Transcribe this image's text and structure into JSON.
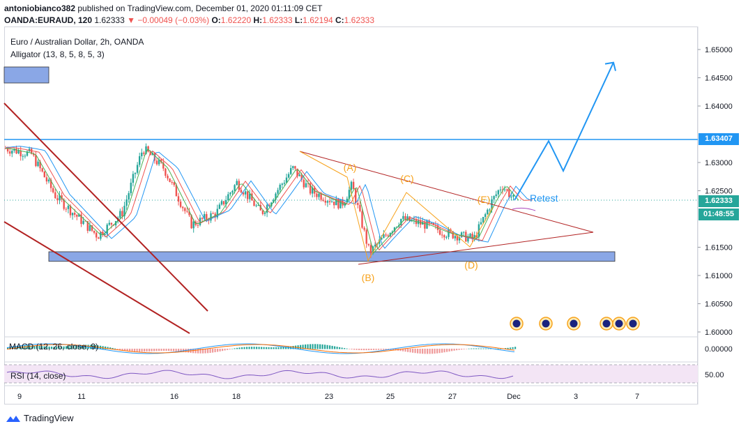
{
  "header": {
    "author": "antoniobianco382",
    "published_text": "published on TradingView.com, December 01, 2020 01:11:09 CET",
    "symbol": "OANDA:EURAUD, 120",
    "last": "1.62333",
    "change": "−0.00049 (−0.03%)",
    "o_label": "O:",
    "o_val": "1.62220",
    "h_label": "H:",
    "h_val": "1.62333",
    "l_label": "L:",
    "l_val": "1.62194",
    "c_label": "C:",
    "c_val": "1.62333"
  },
  "legend": {
    "instrument": "Euro / Australian Dollar, 2h, OANDA",
    "indicator": "Alligator (13, 8, 5, 8, 5, 3)"
  },
  "panes": {
    "macd_label": "MACD (12, 26, close, 9)",
    "rsi_label": "RSI (14, close)",
    "rsi_level": "50.00",
    "macd_level": "0.00000"
  },
  "badges": {
    "level": "1.63407",
    "price": "1.62333",
    "timer": "01:48:55"
  },
  "annotations": {
    "A": "(A)",
    "B": "(B)",
    "C": "(C)",
    "D": "(D)",
    "E": "(E)",
    "retest": "Retest"
  },
  "footer": {
    "brand": "TradingView"
  },
  "colors": {
    "up": "#26a69a",
    "down": "#ef5350",
    "blue": "#2196f3",
    "orange": "#f7a21b",
    "zone": "#8aa7e6",
    "trend": "#b22222"
  },
  "chart_data": {
    "type": "candlestick",
    "symbol": "EURAUD",
    "timeframe": "2h",
    "y_ticks": [
      1.65,
      1.645,
      1.64,
      1.635,
      1.63,
      1.625,
      1.62,
      1.615,
      1.61,
      1.605,
      1.6
    ],
    "y_tick_labels": [
      "1.65000",
      "1.64500",
      "1.64000",
      "",
      "1.63000",
      "1.62500",
      "",
      "1.61500",
      "1.61000",
      "1.60500",
      "1.60000"
    ],
    "x_tick_labels": [
      "9",
      "11",
      "16",
      "18",
      "23",
      "25",
      "27",
      "Dec",
      "3",
      "7"
    ],
    "ylim": [
      1.6,
      1.65
    ],
    "resistance_level": 1.63407,
    "last_price": 1.62333,
    "support_zone": [
      1.6125,
      1.6142
    ],
    "wave_points": [
      {
        "label": "A",
        "price": 1.628
      },
      {
        "label": "B",
        "price": 1.6123
      },
      {
        "label": "C",
        "price": 1.6248
      },
      {
        "label": "D",
        "price": 1.6148
      },
      {
        "label": "E",
        "price": 1.623
      }
    ],
    "projection": [
      1.623,
      1.6338,
      1.6285,
      1.6477
    ]
  }
}
